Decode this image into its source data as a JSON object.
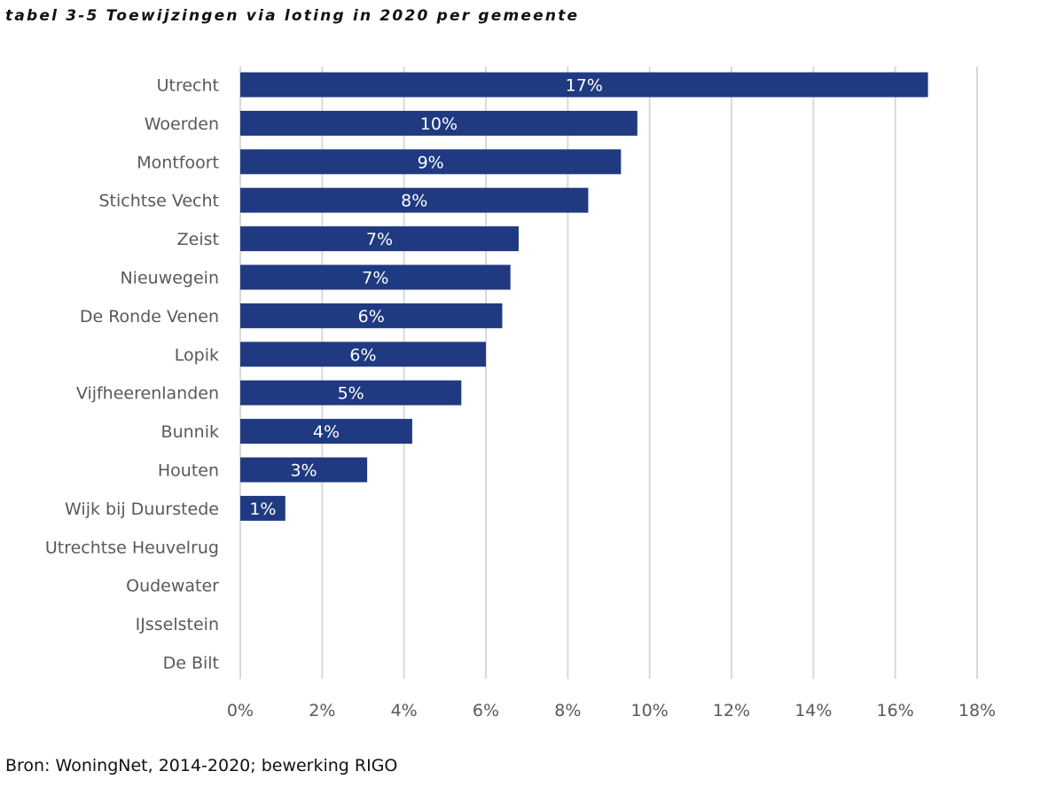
{
  "title": "tabel 3-5 Toewijzingen via loting in 2020 per gemeente",
  "source": "Bron: WoningNet, 2014-2020; bewerking RIGO",
  "colors": {
    "bar": "#1F3A80",
    "grid": "#D9D9D9",
    "text": "#595959"
  },
  "chart_data": {
    "type": "bar",
    "orientation": "horizontal",
    "categories": [
      "Utrecht",
      "Woerden",
      "Montfoort",
      "Stichtse Vecht",
      "Zeist",
      "Nieuwegein",
      "De Ronde Venen",
      "Lopik",
      "Vijfheerenlanden",
      "Bunnik",
      "Houten",
      "Wijk bij Duurstede",
      "Utrechtse Heuvelrug",
      "Oudewater",
      "IJsselstein",
      "De Bilt"
    ],
    "values": [
      16.8,
      9.7,
      9.3,
      8.5,
      6.8,
      6.6,
      6.4,
      6.0,
      5.4,
      4.2,
      3.1,
      1.1,
      0,
      0,
      0,
      0
    ],
    "data_labels": [
      "17%",
      "10%",
      "9%",
      "8%",
      "7%",
      "7%",
      "6%",
      "6%",
      "5%",
      "4%",
      "3%",
      "1%",
      "",
      "",
      "",
      ""
    ],
    "xlim": [
      0,
      18
    ],
    "xticks": [
      0,
      2,
      4,
      6,
      8,
      10,
      12,
      14,
      16,
      18
    ],
    "xtick_labels": [
      "0%",
      "2%",
      "4%",
      "6%",
      "8%",
      "10%",
      "12%",
      "14%",
      "16%",
      "18%"
    ],
    "grid": "vertical",
    "legend": "none"
  }
}
